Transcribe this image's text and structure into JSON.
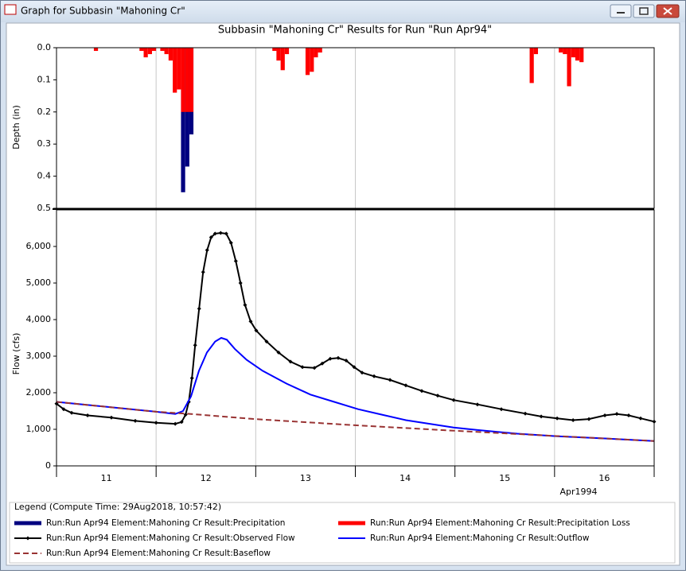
{
  "window": {
    "title": "Graph for Subbasin \"Mahoning Cr\""
  },
  "chart_data": [
    {
      "type": "bar",
      "title": "Subbasin \"Mahoning Cr\" Results for Run \"Run Apr94\"",
      "ylabel": "Depth (in)",
      "ylim": [
        0,
        0.5
      ],
      "y_inverted": true,
      "yticks": [
        {
          "value": 0,
          "label": "0.0"
        },
        0.1,
        0.2,
        0.3,
        0.4,
        0.5
      ],
      "xlim": [
        11,
        17
      ],
      "xticks": [
        11,
        12,
        13,
        14,
        15,
        16,
        17
      ],
      "grid": "x",
      "series": [
        {
          "name": "Run:Run Apr94 Element:Mahoning Cr Result:Precipitation",
          "color": "#000080",
          "x": [
            12.25,
            12.292,
            12.333
          ],
          "values": [
            0.45,
            0.37,
            0.27
          ]
        },
        {
          "name": "Run:Run Apr94 Element:Mahoning Cr Result:Precipitation Loss",
          "color": "#ff0000",
          "x": [
            11.375,
            11.833,
            11.875,
            11.917,
            11.958,
            12.042,
            12.083,
            12.125,
            12.167,
            12.208,
            12.25,
            12.292,
            12.333,
            13.167,
            13.208,
            13.25,
            13.292,
            13.5,
            13.542,
            13.583,
            13.625,
            15.75,
            15.792,
            16.042,
            16.083,
            16.125,
            16.167,
            16.208,
            16.25
          ],
          "values": [
            0.01,
            0.01,
            0.03,
            0.02,
            0.01,
            0.01,
            0.02,
            0.04,
            0.14,
            0.13,
            0.2,
            0.2,
            0.2,
            0.01,
            0.04,
            0.07,
            0.02,
            0.085,
            0.075,
            0.03,
            0.015,
            0.11,
            0.02,
            0.015,
            0.02,
            0.12,
            0.03,
            0.04,
            0.045
          ]
        }
      ]
    },
    {
      "type": "line",
      "ylabel": "Flow (cfs)",
      "xlabel": "Apr1994",
      "ylim": [
        0,
        7000
      ],
      "yticks": [
        0,
        {
          "value": 1000,
          "label": "1,000"
        },
        {
          "value": 2000,
          "label": "2,000"
        },
        {
          "value": 3000,
          "label": "3,000"
        },
        {
          "value": 4000,
          "label": "4,000"
        },
        {
          "value": 5000,
          "label": "5,000"
        },
        {
          "value": 6000,
          "label": "6,000"
        }
      ],
      "xlim": [
        11,
        17
      ],
      "xticks": [
        11,
        12,
        13,
        14,
        15,
        16,
        17
      ],
      "grid": "x",
      "xtick_labels": [
        {
          "value": 11.5,
          "label": "11"
        },
        {
          "value": 12.5,
          "label": "12"
        },
        {
          "value": 13.5,
          "label": "13"
        },
        {
          "value": 14.5,
          "label": "14"
        },
        {
          "value": 15.5,
          "label": "15"
        },
        {
          "value": 16.5,
          "label": "16"
        }
      ],
      "series": [
        {
          "name": "Run:Run Apr94 Element:Mahoning Cr Result:Observed Flow",
          "color": "#000000",
          "marker": true,
          "x": [
            11.0,
            11.072,
            11.152,
            11.312,
            11.551,
            11.791,
            12.0,
            12.192,
            12.256,
            12.296,
            12.328,
            12.36,
            12.392,
            12.432,
            12.472,
            12.512,
            12.552,
            12.592,
            12.648,
            12.704,
            12.752,
            12.8,
            12.847,
            12.893,
            12.949,
            13.005,
            13.109,
            13.229,
            13.349,
            13.469,
            13.589,
            13.668,
            13.748,
            13.828,
            13.908,
            13.988,
            14.068,
            14.188,
            14.348,
            14.507,
            14.667,
            14.827,
            14.987,
            15.226,
            15.466,
            15.706,
            15.866,
            16.026,
            16.186,
            16.345,
            16.505,
            16.625,
            16.744,
            16.864,
            17.0
          ],
          "values": [
            1700,
            1550,
            1450,
            1380,
            1320,
            1230,
            1180,
            1150,
            1200,
            1400,
            1750,
            2400,
            3300,
            4300,
            5300,
            5900,
            6250,
            6350,
            6370,
            6350,
            6100,
            5600,
            5000,
            4400,
            3950,
            3700,
            3400,
            3100,
            2850,
            2700,
            2680,
            2800,
            2930,
            2950,
            2880,
            2700,
            2550,
            2450,
            2350,
            2200,
            2050,
            1920,
            1800,
            1680,
            1550,
            1430,
            1350,
            1300,
            1250,
            1280,
            1380,
            1420,
            1380,
            1300,
            1210
          ]
        },
        {
          "name": "Run:Run Apr94 Element:Mahoning Cr Result:Outflow",
          "color": "#0000ff",
          "x": [
            11.0,
            12.0,
            12.192,
            12.27,
            12.35,
            12.43,
            12.51,
            12.592,
            12.654,
            12.71,
            12.79,
            12.909,
            13.069,
            13.309,
            13.549,
            13.788,
            14.028,
            14.268,
            14.507,
            14.747,
            14.987,
            15.226,
            15.626,
            16.026,
            16.505,
            17.0
          ],
          "values": [
            1750,
            1480,
            1420,
            1500,
            1900,
            2600,
            3100,
            3400,
            3500,
            3450,
            3200,
            2900,
            2600,
            2250,
            1950,
            1750,
            1550,
            1400,
            1250,
            1150,
            1050,
            980,
            880,
            810,
            750,
            680
          ]
        },
        {
          "name": "Run:Run Apr94 Element:Mahoning Cr Result:Baseflow",
          "color": "#993333",
          "dashed": true,
          "x": [
            11.0,
            12.0,
            12.35,
            12.989,
            13.996,
            14.995,
            15.993,
            17.0
          ],
          "values": [
            1750,
            1480,
            1420,
            1280,
            1110,
            960,
            820,
            680
          ]
        }
      ]
    }
  ],
  "legend": {
    "title": "Legend (Compute Time: 29Aug2018, 10:57:42)"
  }
}
